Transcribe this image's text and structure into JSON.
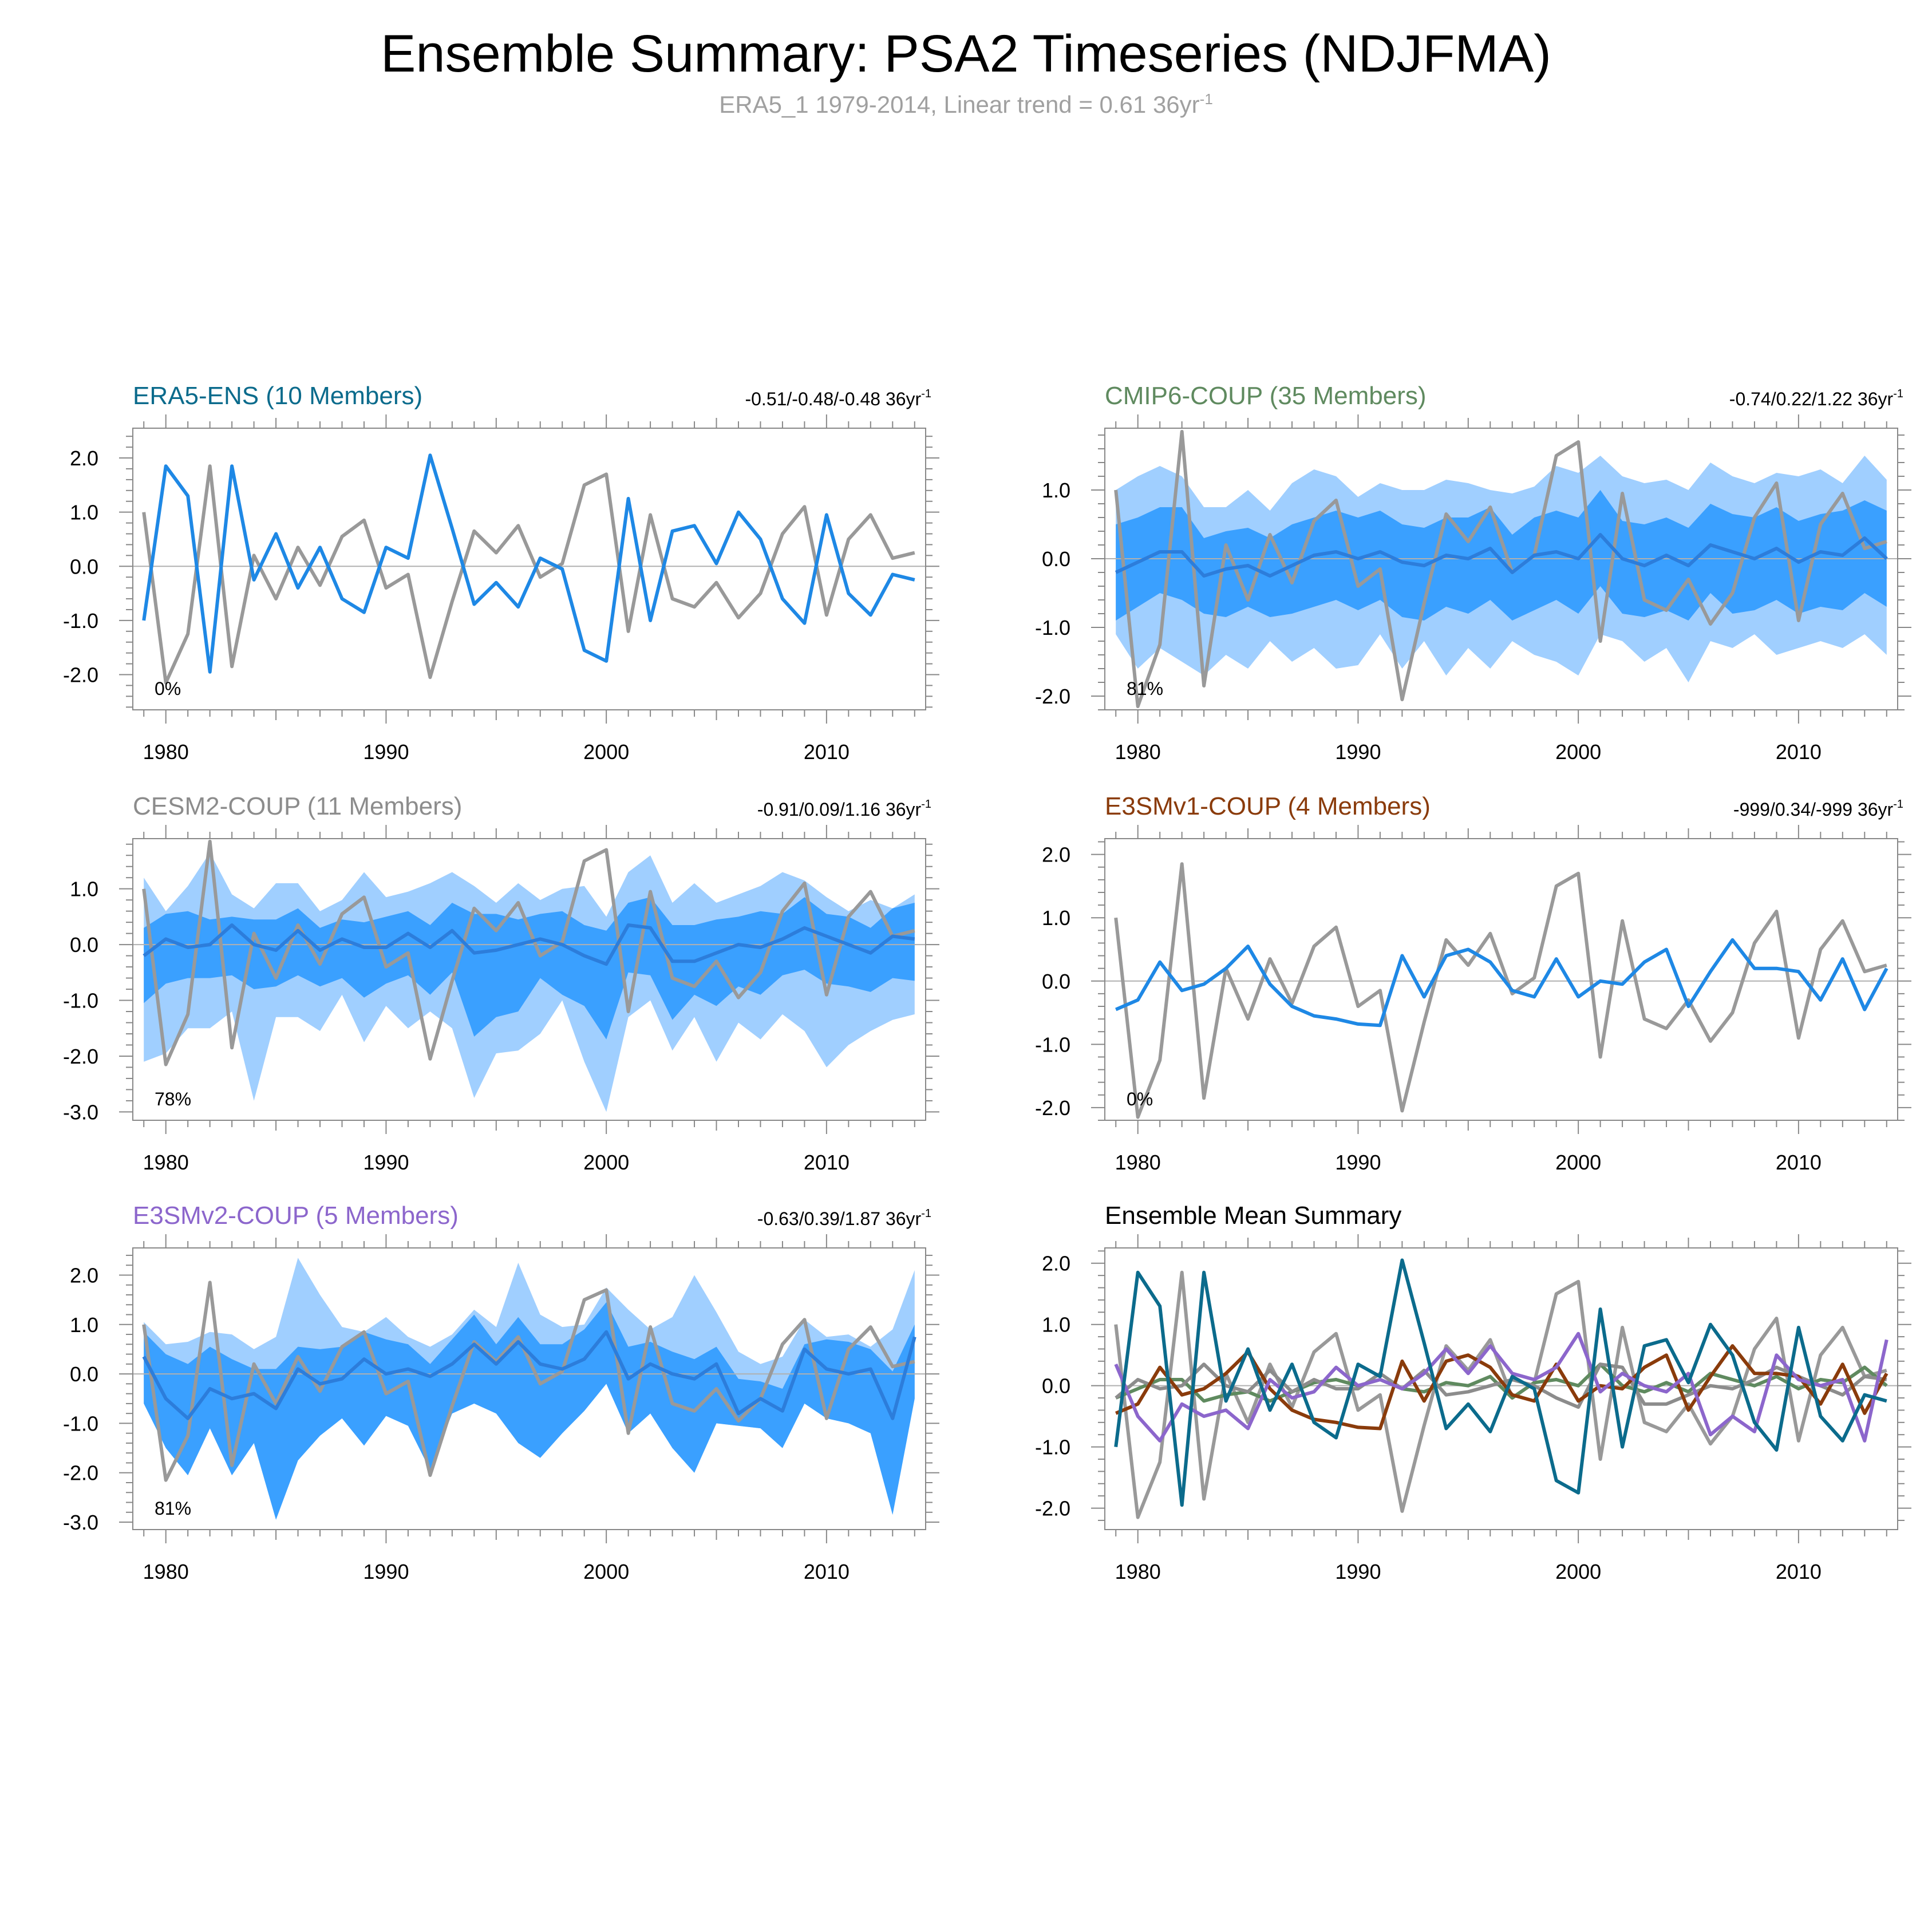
{
  "title": "Ensemble Summary: PSA2 Timeseries (NDJFMA)",
  "subtitle": {
    "text": "ERA5_1 1979-2014, Linear trend = 0.61 36yr",
    "sup": "-1"
  },
  "colors": {
    "obs": "#999999",
    "band_outer": "#a0cfff",
    "band_inner": "#3aa0ff",
    "mean_line_band": "#2c7ddb",
    "member_line": "#1e88e5",
    "era5": "#0b6b8c",
    "cmip6": "#5f8a5f",
    "cesm2": "#8c8c8c",
    "e3smv1": "#8a3b0b",
    "e3smv2": "#8c66cc",
    "black": "#000000"
  },
  "chart_data": [
    {
      "type": "line",
      "key": "era5",
      "title": "ERA5-ENS (10 Members)",
      "title_color": "#0b6b8c",
      "trend": "-0.51/-0.48/-0.48 36yr",
      "trend_sup": "-1",
      "pct": "0%",
      "xlim": [
        1978.5,
        2014.5
      ],
      "ylim": [
        -2.65,
        2.55
      ],
      "yticks": [
        2.0,
        1.0,
        0.0,
        -1.0,
        -2.0
      ],
      "ytick_labels": [
        "2.0",
        "1.0",
        "0.0",
        "-1.0",
        "-2.0"
      ],
      "xticks": [
        1980,
        1990,
        2000,
        2010
      ],
      "xtick_labels": [
        "1980",
        "1990",
        "2000",
        "2010"
      ],
      "obs": [
        1.0,
        -2.15,
        -1.25,
        1.85,
        -1.85,
        0.2,
        -0.6,
        0.35,
        -0.35,
        0.55,
        0.85,
        -0.4,
        -0.15,
        -2.05,
        -0.65,
        0.65,
        0.25,
        0.75,
        -0.2,
        0.05,
        1.5,
        1.7,
        -1.2,
        0.95,
        -0.6,
        -0.75,
        -0.3,
        -0.95,
        -0.5,
        0.6,
        1.1,
        -0.9,
        0.5,
        0.95,
        0.15,
        0.25
      ],
      "mean": [
        -1.0,
        1.85,
        1.3,
        -1.95,
        1.85,
        -0.25,
        0.6,
        -0.4,
        0.35,
        -0.6,
        -0.85,
        0.35,
        0.15,
        2.05,
        0.7,
        -0.7,
        -0.3,
        -0.75,
        0.15,
        -0.05,
        -1.55,
        -1.75,
        1.25,
        -1.0,
        0.65,
        0.75,
        0.05,
        1.0,
        0.5,
        -0.6,
        -1.05,
        0.95,
        -0.5,
        -0.9,
        -0.15,
        -0.25
      ]
    },
    {
      "type": "line",
      "key": "cmip6",
      "title": "CMIP6-COUP (35 Members)",
      "title_color": "#5f8a5f",
      "trend": "-0.74/0.22/1.22 36yr",
      "trend_sup": "-1",
      "pct": "81%",
      "xlim": [
        1978.5,
        2014.5
      ],
      "ylim": [
        -2.2,
        1.9
      ],
      "yticks": [
        1.0,
        0.0,
        -1.0,
        -2.0
      ],
      "ytick_labels": [
        "1.0",
        "0.0",
        "-1.0",
        "-2.0"
      ],
      "xticks": [
        1980,
        1990,
        2000,
        2010
      ],
      "xtick_labels": [
        "1980",
        "1990",
        "2000",
        "2010"
      ],
      "obs": [
        1.0,
        -2.15,
        -1.25,
        1.85,
        -1.85,
        0.2,
        -0.6,
        0.35,
        -0.35,
        0.55,
        0.85,
        -0.4,
        -0.15,
        -2.05,
        -0.65,
        0.65,
        0.25,
        0.75,
        -0.2,
        0.05,
        1.5,
        1.7,
        -1.2,
        0.95,
        -0.6,
        -0.75,
        -0.3,
        -0.95,
        -0.5,
        0.6,
        1.1,
        -0.9,
        0.5,
        0.95,
        0.15,
        0.25
      ],
      "mean": [
        -0.2,
        -0.05,
        0.1,
        0.1,
        -0.25,
        -0.15,
        -0.1,
        -0.25,
        -0.1,
        0.05,
        0.1,
        0.0,
        0.1,
        -0.05,
        -0.1,
        0.05,
        0.0,
        0.15,
        -0.2,
        0.05,
        0.1,
        0.0,
        0.35,
        0.0,
        -0.1,
        0.05,
        -0.1,
        0.2,
        0.1,
        0.0,
        0.15,
        -0.05,
        0.1,
        0.05,
        0.3,
        0.0
      ],
      "inner_low": [
        -0.9,
        -0.7,
        -0.5,
        -0.6,
        -0.8,
        -0.85,
        -0.7,
        -0.85,
        -0.8,
        -0.7,
        -0.6,
        -0.75,
        -0.6,
        -0.85,
        -0.9,
        -0.7,
        -0.8,
        -0.6,
        -0.9,
        -0.75,
        -0.6,
        -0.8,
        -0.4,
        -0.8,
        -0.85,
        -0.75,
        -0.9,
        -0.5,
        -0.8,
        -0.75,
        -0.6,
        -0.8,
        -0.7,
        -0.75,
        -0.5,
        -0.7
      ],
      "inner_high": [
        0.5,
        0.6,
        0.75,
        0.75,
        0.3,
        0.4,
        0.45,
        0.3,
        0.5,
        0.6,
        0.7,
        0.6,
        0.7,
        0.5,
        0.45,
        0.6,
        0.6,
        0.75,
        0.35,
        0.6,
        0.7,
        0.6,
        1.0,
        0.55,
        0.5,
        0.6,
        0.45,
        0.8,
        0.65,
        0.6,
        0.75,
        0.55,
        0.65,
        0.7,
        0.85,
        0.7
      ],
      "outer_low": [
        -1.1,
        -1.6,
        -1.3,
        -1.5,
        -1.7,
        -1.4,
        -1.6,
        -1.2,
        -1.5,
        -1.3,
        -1.6,
        -1.55,
        -1.1,
        -1.6,
        -1.2,
        -1.7,
        -1.3,
        -1.6,
        -1.2,
        -1.4,
        -1.5,
        -1.7,
        -1.1,
        -1.2,
        -1.5,
        -1.3,
        -1.8,
        -1.2,
        -1.3,
        -1.1,
        -1.4,
        -1.3,
        -1.2,
        -1.3,
        -1.1,
        -1.4
      ],
      "outer_high": [
        1.0,
        1.2,
        1.35,
        1.2,
        0.75,
        0.75,
        1.0,
        0.7,
        1.1,
        1.3,
        1.2,
        0.9,
        1.1,
        1.0,
        1.0,
        1.15,
        1.1,
        1.0,
        0.95,
        1.05,
        1.35,
        1.25,
        1.5,
        1.2,
        1.1,
        1.15,
        1.0,
        1.4,
        1.2,
        1.1,
        1.25,
        1.2,
        1.3,
        1.1,
        1.5,
        1.15
      ]
    },
    {
      "type": "line",
      "key": "cesm2",
      "title": "CESM2-COUP (11 Members)",
      "title_color": "#8c8c8c",
      "trend": "-0.91/0.09/1.16 36yr",
      "trend_sup": "-1",
      "pct": "78%",
      "xlim": [
        1978.5,
        2014.5
      ],
      "ylim": [
        -3.15,
        1.9
      ],
      "yticks": [
        1.0,
        0.0,
        -1.0,
        -2.0,
        -3.0
      ],
      "ytick_labels": [
        "1.0",
        "0.0",
        "-1.0",
        "-2.0",
        "-3.0"
      ],
      "xticks": [
        1980,
        1990,
        2000,
        2010
      ],
      "xtick_labels": [
        "1980",
        "1990",
        "2000",
        "2010"
      ],
      "obs": [
        1.0,
        -2.15,
        -1.25,
        1.85,
        -1.85,
        0.2,
        -0.6,
        0.35,
        -0.35,
        0.55,
        0.85,
        -0.4,
        -0.15,
        -2.05,
        -0.65,
        0.65,
        0.25,
        0.75,
        -0.2,
        0.05,
        1.5,
        1.7,
        -1.2,
        0.95,
        -0.6,
        -0.75,
        -0.3,
        -0.95,
        -0.5,
        0.6,
        1.1,
        -0.9,
        0.5,
        0.95,
        0.15,
        0.25
      ],
      "mean": [
        -0.2,
        0.1,
        -0.05,
        0.0,
        0.35,
        0.0,
        -0.1,
        0.25,
        -0.1,
        0.1,
        -0.05,
        -0.05,
        0.2,
        -0.05,
        0.25,
        -0.15,
        -0.1,
        0.0,
        0.1,
        0.0,
        -0.2,
        -0.35,
        0.35,
        0.3,
        -0.3,
        -0.3,
        -0.15,
        0.0,
        -0.05,
        0.1,
        0.3,
        0.15,
        0.0,
        -0.15,
        0.15,
        0.1
      ],
      "inner_low": [
        -1.05,
        -0.7,
        -0.6,
        -0.6,
        -0.55,
        -0.8,
        -0.75,
        -0.55,
        -0.75,
        -0.6,
        -0.95,
        -0.7,
        -0.55,
        -0.9,
        -0.5,
        -1.65,
        -1.3,
        -1.2,
        -0.6,
        -0.9,
        -1.1,
        -1.7,
        -0.5,
        -0.55,
        -1.35,
        -0.9,
        -1.1,
        -0.75,
        -0.9,
        -0.55,
        -0.45,
        -0.7,
        -0.75,
        -0.85,
        -0.6,
        -0.65
      ],
      "inner_high": [
        0.3,
        0.55,
        0.6,
        0.45,
        0.5,
        0.45,
        0.45,
        0.65,
        0.3,
        0.45,
        0.4,
        0.5,
        0.6,
        0.35,
        0.75,
        0.55,
        0.55,
        0.45,
        0.55,
        0.6,
        0.35,
        0.25,
        0.75,
        0.85,
        0.35,
        0.35,
        0.45,
        0.5,
        0.6,
        0.55,
        0.85,
        0.55,
        0.5,
        0.3,
        0.65,
        0.75
      ],
      "outer_low": [
        -2.1,
        -1.95,
        -1.5,
        -1.5,
        -1.2,
        -2.8,
        -1.3,
        -1.3,
        -1.55,
        -0.9,
        -1.75,
        -1.1,
        -1.5,
        -1.2,
        -1.5,
        -2.75,
        -1.95,
        -1.9,
        -1.6,
        -1.0,
        -2.1,
        -3.0,
        -1.3,
        -1.0,
        -1.9,
        -1.3,
        -2.1,
        -1.4,
        -1.7,
        -1.25,
        -1.55,
        -2.2,
        -1.8,
        -1.55,
        -1.35,
        -1.25
      ],
      "outer_high": [
        1.2,
        0.6,
        1.05,
        1.65,
        0.9,
        0.65,
        1.1,
        1.1,
        0.6,
        0.8,
        1.3,
        0.85,
        0.95,
        1.1,
        1.3,
        1.05,
        0.75,
        1.1,
        0.8,
        1.0,
        1.05,
        0.5,
        1.3,
        1.6,
        0.75,
        1.1,
        0.75,
        0.9,
        1.05,
        1.3,
        1.15,
        0.85,
        0.6,
        0.8,
        0.65,
        0.9
      ]
    },
    {
      "type": "line",
      "key": "e3smv1",
      "title": "E3SMv1-COUP (4 Members)",
      "title_color": "#8a3b0b",
      "trend": "-999/0.34/-999 36yr",
      "trend_sup": "-1",
      "pct": "0%",
      "xlim": [
        1978.5,
        2014.5
      ],
      "ylim": [
        -2.2,
        2.25
      ],
      "yticks": [
        2.0,
        1.0,
        0.0,
        -1.0,
        -2.0
      ],
      "ytick_labels": [
        "2.0",
        "1.0",
        "0.0",
        "-1.0",
        "-2.0"
      ],
      "xticks": [
        1980,
        1990,
        2000,
        2010
      ],
      "xtick_labels": [
        "1980",
        "1990",
        "2000",
        "2010"
      ],
      "obs": [
        1.0,
        -2.15,
        -1.25,
        1.85,
        -1.85,
        0.2,
        -0.6,
        0.35,
        -0.35,
        0.55,
        0.85,
        -0.4,
        -0.15,
        -2.05,
        -0.65,
        0.65,
        0.25,
        0.75,
        -0.2,
        0.05,
        1.5,
        1.7,
        -1.2,
        0.95,
        -0.6,
        -0.75,
        -0.3,
        -0.95,
        -0.5,
        0.6,
        1.1,
        -0.9,
        0.5,
        0.95,
        0.15,
        0.25
      ],
      "mean": [
        -0.45,
        -0.3,
        0.3,
        -0.15,
        -0.05,
        0.2,
        0.55,
        -0.05,
        -0.4,
        -0.55,
        -0.6,
        -0.68,
        -0.7,
        0.4,
        -0.25,
        0.4,
        0.5,
        0.3,
        -0.15,
        -0.25,
        0.35,
        -0.25,
        0.0,
        -0.05,
        0.3,
        0.5,
        -0.4,
        0.15,
        0.65,
        0.2,
        0.2,
        0.15,
        -0.3,
        0.35,
        -0.45,
        0.2
      ]
    },
    {
      "type": "line",
      "key": "e3smv2",
      "title": "E3SMv2-COUP (5 Members)",
      "title_color": "#8c66cc",
      "trend": "-0.63/0.39/1.87 36yr",
      "trend_sup": "-1",
      "pct": "81%",
      "xlim": [
        1978.5,
        2014.5
      ],
      "ylim": [
        -3.15,
        2.55
      ],
      "yticks": [
        2.0,
        1.0,
        0.0,
        -1.0,
        -2.0,
        -3.0
      ],
      "ytick_labels": [
        "2.0",
        "1.0",
        "0.0",
        "-1.0",
        "-2.0",
        "-3.0"
      ],
      "xticks": [
        1980,
        1990,
        2000,
        2010
      ],
      "xtick_labels": [
        "1980",
        "1990",
        "2000",
        "2010"
      ],
      "obs": [
        1.0,
        -2.15,
        -1.25,
        1.85,
        -1.85,
        0.2,
        -0.6,
        0.35,
        -0.35,
        0.55,
        0.85,
        -0.4,
        -0.15,
        -2.05,
        -0.65,
        0.65,
        0.25,
        0.75,
        -0.2,
        0.05,
        1.5,
        1.7,
        -1.2,
        0.95,
        -0.6,
        -0.75,
        -0.3,
        -0.95,
        -0.5,
        0.6,
        1.1,
        -0.9,
        0.5,
        0.95,
        0.15,
        0.25
      ],
      "mean": [
        0.35,
        -0.5,
        -0.9,
        -0.3,
        -0.5,
        -0.4,
        -0.7,
        0.1,
        -0.2,
        -0.1,
        0.3,
        0.0,
        0.1,
        -0.05,
        0.2,
        0.6,
        0.2,
        0.65,
        0.2,
        0.1,
        0.3,
        0.85,
        -0.1,
        0.2,
        0.0,
        -0.1,
        0.2,
        -0.8,
        -0.5,
        -0.75,
        0.5,
        0.1,
        0.0,
        0.1,
        -0.9,
        0.75
      ],
      "inner_low": [
        -0.6,
        -1.5,
        -2.05,
        -1.1,
        -2.05,
        -1.4,
        -2.95,
        -1.75,
        -1.25,
        -0.9,
        -1.45,
        -0.85,
        -1.05,
        -1.95,
        -0.8,
        -0.6,
        -0.8,
        -1.4,
        -1.7,
        -1.2,
        -0.75,
        -0.2,
        -1.2,
        -0.8,
        -1.5,
        -2.0,
        -1.0,
        -1.05,
        -1.1,
        -1.5,
        -0.6,
        -0.9,
        -1.0,
        -1.2,
        -2.85,
        -0.5
      ],
      "inner_high": [
        0.85,
        0.4,
        0.2,
        0.55,
        0.3,
        0.1,
        0.1,
        0.55,
        0.5,
        0.55,
        0.85,
        0.7,
        0.6,
        0.2,
        0.7,
        1.2,
        0.6,
        1.15,
        0.6,
        0.6,
        0.9,
        1.45,
        0.55,
        0.65,
        0.45,
        0.3,
        0.55,
        -0.1,
        -0.15,
        -0.3,
        0.6,
        0.7,
        0.65,
        0.5,
        0.05,
        1.0
      ],
      "outer_low": [
        -0.6,
        -1.5,
        -2.05,
        -1.1,
        -2.05,
        -1.4,
        -2.95,
        -1.75,
        -1.25,
        -0.9,
        -1.45,
        -0.85,
        -1.05,
        -1.95,
        -0.8,
        -0.6,
        -0.8,
        -1.4,
        -1.7,
        -1.2,
        -0.75,
        -0.2,
        -1.2,
        -0.8,
        -1.5,
        -2.0,
        -1.0,
        -1.05,
        -1.1,
        -1.5,
        -0.6,
        -0.9,
        -1.0,
        -1.2,
        -2.85,
        -0.5
      ],
      "outer_high": [
        1.05,
        0.6,
        0.65,
        0.85,
        0.8,
        0.5,
        0.75,
        2.35,
        1.6,
        0.95,
        0.85,
        1.15,
        0.75,
        0.55,
        0.8,
        1.3,
        0.95,
        2.25,
        1.2,
        0.95,
        1.0,
        1.75,
        1.3,
        0.9,
        1.15,
        2.0,
        1.25,
        0.45,
        0.2,
        0.35,
        1.1,
        0.75,
        0.8,
        0.55,
        0.9,
        2.1
      ]
    },
    {
      "type": "line",
      "key": "summary",
      "title": "Ensemble Mean Summary",
      "title_color": "#000000",
      "trend": "",
      "trend_sup": "",
      "pct": "",
      "xlim": [
        1978.5,
        2014.5
      ],
      "ylim": [
        -2.35,
        2.25
      ],
      "yticks": [
        2.0,
        1.0,
        0.0,
        -1.0,
        -2.0
      ],
      "ytick_labels": [
        "2.0",
        "1.0",
        "0.0",
        "-1.0",
        "-2.0"
      ],
      "xticks": [
        1980,
        1990,
        2000,
        2010
      ],
      "xtick_labels": [
        "1980",
        "1990",
        "2000",
        "2010"
      ],
      "series_keys": [
        "obs",
        "cmip6",
        "cesm2",
        "e3smv1",
        "e3smv2",
        "era5"
      ]
    }
  ]
}
